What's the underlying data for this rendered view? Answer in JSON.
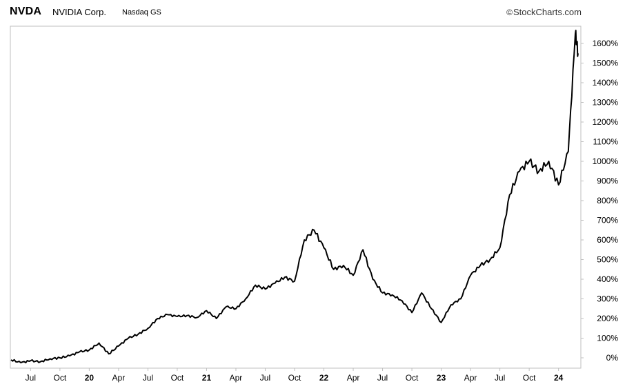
{
  "header": {
    "ticker": "NVDA",
    "company": "NVIDIA Corp.",
    "exchange": "Nasdaq GS",
    "copyright_symbol": "©",
    "source": "StockCharts.com"
  },
  "chart_data": {
    "type": "line",
    "title": "",
    "xlabel": "",
    "ylabel": "",
    "ylim": [
      -50,
      1700
    ],
    "y_ticks": [
      "0%",
      "100%",
      "200%",
      "300%",
      "400%",
      "500%",
      "600%",
      "700%",
      "800%",
      "900%",
      "1000%",
      "1100%",
      "1200%",
      "1300%",
      "1400%",
      "1500%",
      "1600%"
    ],
    "y_tick_values": [
      0,
      100,
      200,
      300,
      400,
      500,
      600,
      700,
      800,
      900,
      1000,
      1100,
      1200,
      1300,
      1400,
      1500,
      1600
    ],
    "x_ticks": [
      "Jul",
      "Oct",
      "20",
      "Apr",
      "Jul",
      "Oct",
      "21",
      "Apr",
      "Jul",
      "Oct",
      "22",
      "Apr",
      "Jul",
      "Oct",
      "23",
      "Apr",
      "Jul",
      "Oct",
      "24"
    ],
    "x_tick_dates": [
      "2019-07",
      "2019-10",
      "2020-01",
      "2020-04",
      "2020-07",
      "2020-10",
      "2021-01",
      "2021-04",
      "2021-07",
      "2021-10",
      "2022-01",
      "2022-04",
      "2022-07",
      "2022-10",
      "2023-01",
      "2023-04",
      "2023-07",
      "2023-10",
      "2024-01"
    ],
    "x_tick_is_year": [
      false,
      false,
      true,
      false,
      false,
      false,
      true,
      false,
      false,
      false,
      true,
      false,
      false,
      false,
      true,
      false,
      false,
      false,
      true
    ],
    "x_range": [
      "2019-05",
      "2024-03"
    ],
    "grid": false,
    "legend": "none",
    "line_color": "#000000",
    "series": [
      {
        "x": [
          "2019-05",
          "2019-06",
          "2019-07",
          "2019-08",
          "2019-09",
          "2019-10",
          "2019-11",
          "2019-12",
          "2020-01",
          "2020-02",
          "2020-03",
          "2020-04",
          "2020-05",
          "2020-06",
          "2020-07",
          "2020-08",
          "2020-09",
          "2020-10",
          "2020-11",
          "2020-12",
          "2021-01",
          "2021-02",
          "2021-03",
          "2021-04",
          "2021-05",
          "2021-06",
          "2021-07",
          "2021-08",
          "2021-09",
          "2021-10",
          "2021-11",
          "2021-12",
          "2022-01",
          "2022-02",
          "2022-03",
          "2022-04",
          "2022-05",
          "2022-06",
          "2022-07",
          "2022-08",
          "2022-09",
          "2022-10",
          "2022-11",
          "2022-12",
          "2023-01",
          "2023-02",
          "2023-03",
          "2023-04",
          "2023-05",
          "2023-06",
          "2023-07",
          "2023-08",
          "2023-09",
          "2023-10",
          "2023-11",
          "2023-12",
          "2024-01",
          "2024-02",
          "2024-03"
        ],
        "values": [
          -10,
          -25,
          -15,
          -20,
          -5,
          0,
          10,
          30,
          40,
          75,
          20,
          60,
          100,
          120,
          150,
          200,
          220,
          210,
          215,
          205,
          240,
          200,
          260,
          250,
          300,
          370,
          350,
          380,
          410,
          390,
          600,
          650,
          560,
          450,
          470,
          420,
          550,
          400,
          330,
          320,
          290,
          230,
          330,
          250,
          180,
          270,
          300,
          420,
          470,
          500,
          560,
          830,
          950,
          1000,
          950,
          1000,
          880,
          1050,
          1550
        ],
        "values_peak_detail": [
          1650,
          1550
        ]
      }
    ]
  }
}
